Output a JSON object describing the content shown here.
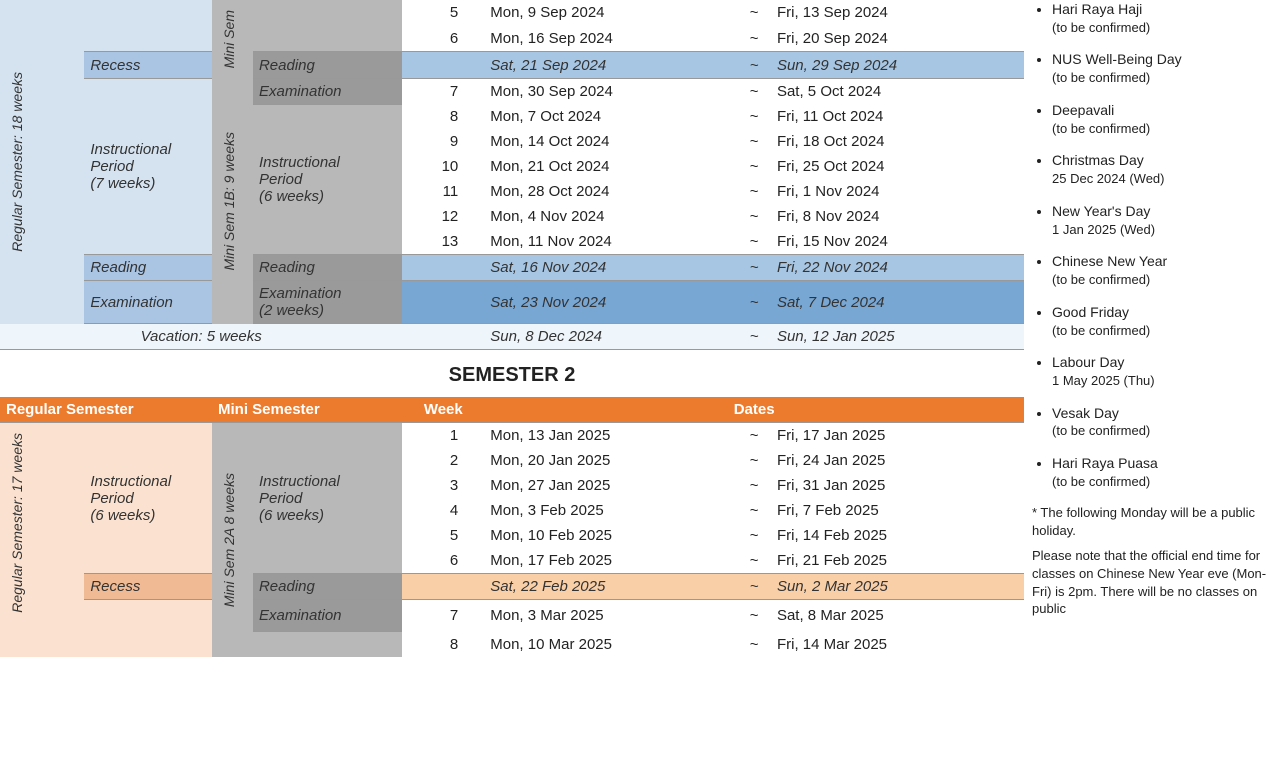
{
  "sem1": {
    "reg_label": "Regular Semester: 18 weeks",
    "mini1a_label": "Mini Sem",
    "mini1b_label": "Mini Sem 1B: 9 weeks",
    "instr_text": "Instructional\nPeriod\n(7 weeks)",
    "instr6_text": "Instructional\nPeriod\n(6 weeks)",
    "recess_label": "Recess",
    "reading_label": "Reading",
    "examination_label": "Examination",
    "exam_2weeks": "Examination\n(2 weeks)",
    "vacation_label": "Vacation: 5 weeks",
    "rows": [
      {
        "wk": "5",
        "start": "Mon, 9 Sep 2024",
        "end": "Fri, 13 Sep 2024",
        "type": "normal",
        "cutoff": true
      },
      {
        "wk": "6",
        "start": "Mon, 16 Sep 2024",
        "end": "Fri, 20 Sep 2024",
        "type": "normal"
      },
      {
        "wk": "",
        "start": "Sat, 21 Sep 2024",
        "end": "Sun, 29 Sep 2024",
        "type": "reading"
      },
      {
        "wk": "7",
        "start": "Mon, 30 Sep 2024",
        "end": "Sat, 5 Oct 2024",
        "type": "exam-mini"
      },
      {
        "wk": "8",
        "start": "Mon, 7 Oct 2024",
        "end": "Fri, 11 Oct 2024",
        "type": "normal"
      },
      {
        "wk": "9",
        "start": "Mon, 14 Oct 2024",
        "end": "Fri, 18 Oct 2024",
        "type": "normal"
      },
      {
        "wk": "10",
        "start": "Mon, 21 Oct 2024",
        "end": "Fri, 25 Oct 2024",
        "type": "normal"
      },
      {
        "wk": "11",
        "start": "Mon, 28 Oct 2024",
        "end": "Fri, 1 Nov 2024",
        "type": "normal"
      },
      {
        "wk": "12",
        "start": "Mon, 4 Nov 2024",
        "end": "Fri, 8 Nov 2024",
        "type": "normal"
      },
      {
        "wk": "13",
        "start": "Mon, 11 Nov 2024",
        "end": "Fri, 15 Nov 2024",
        "type": "normal"
      },
      {
        "wk": "",
        "start": "Sat, 16 Nov 2024",
        "end": "Fri, 22 Nov 2024",
        "type": "reading-main"
      },
      {
        "wk": "",
        "start": "Sat, 23 Nov 2024",
        "end": "Sat, 7 Dec 2024",
        "type": "exam-main"
      },
      {
        "wk": "",
        "start": "Sun, 8 Dec 2024",
        "end": "Sun, 12 Jan 2025",
        "type": "vacation"
      }
    ]
  },
  "sem2": {
    "title": "SEMESTER 2",
    "reg_header": "Regular Semester",
    "mini_header": "Mini Semester",
    "week_header": "Week",
    "dates_header": "Dates",
    "reg_label": "Regular Semester: 17 weeks",
    "mini2a_label": "Mini Sem 2A 8 weeks",
    "instr6_text": "Instructional\nPeriod\n(6 weeks)",
    "recess_label": "Recess",
    "reading_label": "Reading",
    "examination_label": "Examination",
    "rows": [
      {
        "wk": "1",
        "start": "Mon, 13 Jan 2025",
        "end": "Fri, 17 Jan 2025",
        "type": "normal"
      },
      {
        "wk": "2",
        "start": "Mon, 20 Jan 2025",
        "end": "Fri, 24 Jan 2025",
        "type": "normal"
      },
      {
        "wk": "3",
        "start": "Mon, 27 Jan 2025",
        "end": "Fri, 31 Jan 2025",
        "type": "normal"
      },
      {
        "wk": "4",
        "start": "Mon, 3 Feb 2025",
        "end": "Fri, 7 Feb 2025",
        "type": "normal"
      },
      {
        "wk": "5",
        "start": "Mon, 10 Feb 2025",
        "end": "Fri, 14 Feb 2025",
        "type": "normal"
      },
      {
        "wk": "6",
        "start": "Mon, 17 Feb 2025",
        "end": "Fri, 21 Feb 2025",
        "type": "normal"
      },
      {
        "wk": "",
        "start": "Sat, 22 Feb 2025",
        "end": "Sun, 2 Mar 2025",
        "type": "reading"
      },
      {
        "wk": "7",
        "start": "Mon, 3 Mar 2025",
        "end": "Sat, 8 Mar 2025",
        "type": "exam-mini"
      },
      {
        "wk": "8",
        "start": "Mon, 10 Mar 2025",
        "end": "Fri, 14 Mar 2025",
        "type": "normal",
        "cutoff": true
      }
    ]
  },
  "holidays": [
    {
      "name": "Hari Raya Haji",
      "sub": "(to be confirmed)",
      "cutoff": true
    },
    {
      "name": "NUS Well-Being Day",
      "sub": "(to be confirmed)"
    },
    {
      "name": "Deepavali",
      "sub": "(to be confirmed)"
    },
    {
      "name": "Christmas Day",
      "sub": "25 Dec 2024 (Wed)"
    },
    {
      "name": "New Year's Day",
      "sub": "1 Jan 2025 (Wed)"
    },
    {
      "name": "Chinese New Year",
      "sub": "(to be confirmed)"
    },
    {
      "name": "Good Friday",
      "sub": "(to be confirmed)"
    },
    {
      "name": "Labour Day",
      "sub": "1 May 2025 (Thu)"
    },
    {
      "name": "Vesak Day",
      "sub": "(to be confirmed)"
    },
    {
      "name": "Hari Raya Puasa",
      "sub": "(to be confirmed)"
    }
  ],
  "footnote": {
    "line1": "* The following Monday will be a public holiday.",
    "line2": "Please note that the official end time for classes on Chinese New Year eve (Mon-Fri) is 2pm. There will be no classes on public"
  },
  "colors": {
    "s1_light": "#d5e3f1",
    "s1_recess": "#a9c5e3",
    "s1_reading": "#a7c6e3",
    "s1_exam": "#79a7d3",
    "s1_vacation": "#eef5fb",
    "s2_light": "#fbe2d0",
    "s2_header": "#ec7b2d",
    "s2_reading": "#f9cfa8",
    "s2_recess": "#f0bb94",
    "mini": "#b8b8b8",
    "mini_dark": "#9a9a9a"
  }
}
